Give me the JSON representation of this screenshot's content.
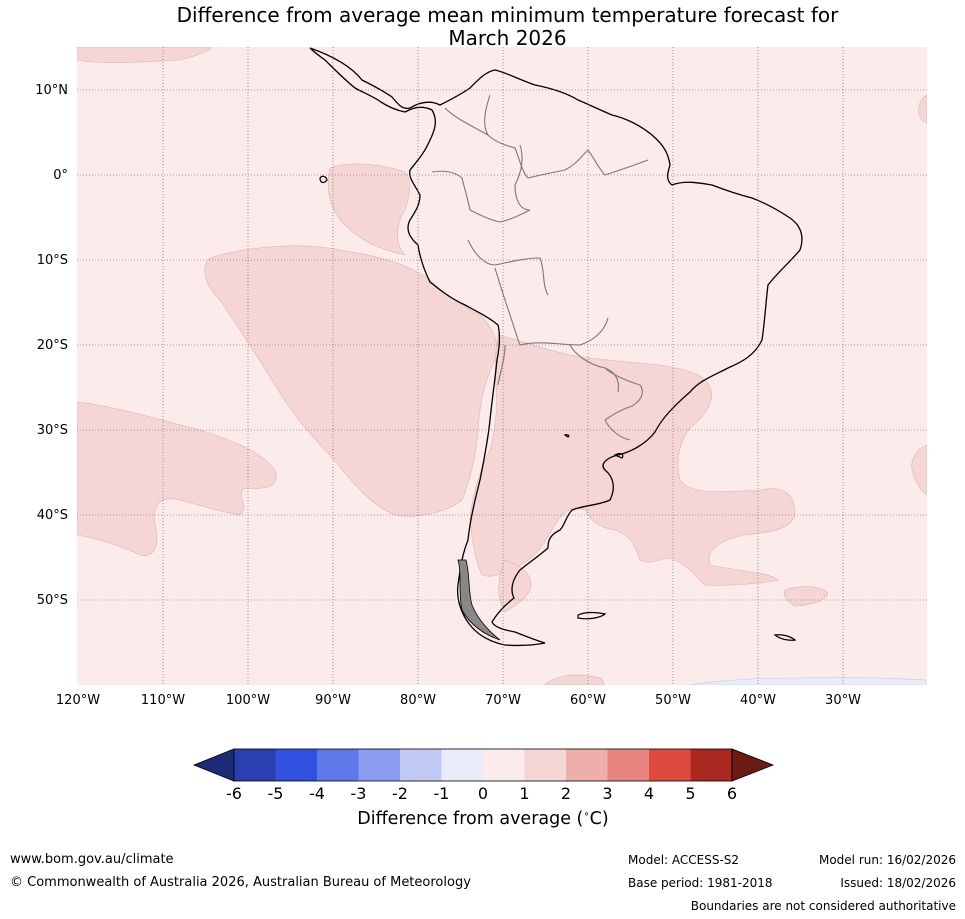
{
  "title": {
    "line1": "Difference from average mean minimum temperature forecast for",
    "line2": "March 2026"
  },
  "map": {
    "region": "South America and surrounding oceans",
    "lat_labels": [
      "10°N",
      "0°",
      "10°S",
      "20°S",
      "30°S",
      "40°S",
      "50°S"
    ],
    "lon_labels": [
      "120°W",
      "110°W",
      "100°W",
      "90°W",
      "80°W",
      "70°W",
      "60°W",
      "50°W",
      "40°W",
      "30°W"
    ],
    "background_category": "0 to 1",
    "background_color": "#fbebea",
    "anomaly_color_1_2": "#f5d6d5",
    "anomaly_color_neg": "#e9ebf9"
  },
  "colorbar": {
    "ticks": [
      "-6",
      "-5",
      "-4",
      "-3",
      "-2",
      "-1",
      "0",
      "1",
      "2",
      "3",
      "4",
      "5",
      "6"
    ],
    "colors": [
      "#1d2a78",
      "#2a3fb0",
      "#3152e0",
      "#5e78e9",
      "#8b9bef",
      "#c1c9f5",
      "#e9ebf9",
      "#fbebea",
      "#f5d6d5",
      "#eeaeaa",
      "#e98580",
      "#dc4b3e",
      "#aa2820",
      "#6c1a14"
    ],
    "label": "Difference from average ($^\\circ$C)",
    "label_text": "Difference from average (",
    "label_unit": "C)"
  },
  "footer": {
    "website": "www.bom.gov.au/climate",
    "copyright": "© Commonwealth of Australia 2026, Australian Bureau of Meteorology",
    "model": "Model: ACCESS-S2",
    "base_period": "Base period: 1981-2018",
    "model_run": "Model run: 16/02/2026",
    "issued": "Issued: 18/02/2026",
    "disclaimer": "Boundaries are not considered authoritative"
  }
}
